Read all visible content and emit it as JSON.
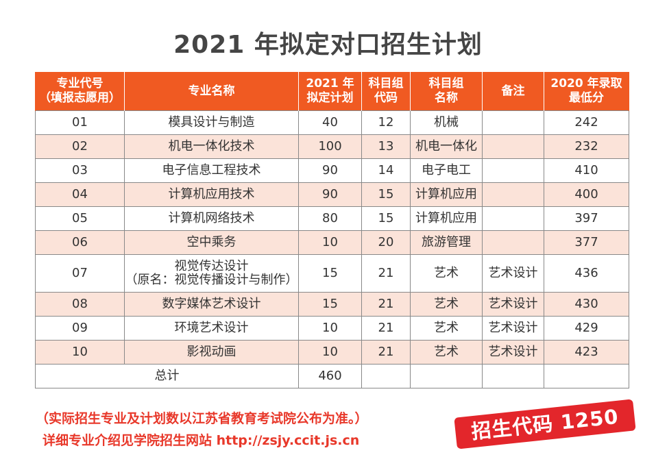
{
  "title": "2021 年拟定对口招生计划",
  "table": {
    "headers": [
      [
        "专业代号",
        "（填报志愿用）"
      ],
      [
        "专业名称"
      ],
      [
        "2021 年",
        "拟定计划"
      ],
      [
        "科目组",
        "代码"
      ],
      [
        "科目组",
        "名称"
      ],
      [
        "备注"
      ],
      [
        "2020 年录取",
        "最低分"
      ]
    ],
    "rows": [
      {
        "code": "01",
        "name": "模具设计与制造",
        "name2": "",
        "plan": "40",
        "group_code": "12",
        "group_name": "机械",
        "note": "",
        "min_score": "242"
      },
      {
        "code": "02",
        "name": "机电一体化技术",
        "name2": "",
        "plan": "100",
        "group_code": "13",
        "group_name": "机电一体化",
        "note": "",
        "min_score": "232"
      },
      {
        "code": "03",
        "name": "电子信息工程技术",
        "name2": "",
        "plan": "90",
        "group_code": "14",
        "group_name": "电子电工",
        "note": "",
        "min_score": "410"
      },
      {
        "code": "04",
        "name": "计算机应用技术",
        "name2": "",
        "plan": "90",
        "group_code": "15",
        "group_name": "计算机应用",
        "note": "",
        "min_score": "400"
      },
      {
        "code": "05",
        "name": "计算机网络技术",
        "name2": "",
        "plan": "80",
        "group_code": "15",
        "group_name": "计算机应用",
        "note": "",
        "min_score": "397"
      },
      {
        "code": "06",
        "name": "空中乘务",
        "name2": "",
        "plan": "10",
        "group_code": "20",
        "group_name": "旅游管理",
        "note": "",
        "min_score": "377"
      },
      {
        "code": "07",
        "name": "视觉传达设计",
        "name2": "（原名：视觉传播设计与制作）",
        "plan": "15",
        "group_code": "21",
        "group_name": "艺术",
        "note": "艺术设计",
        "min_score": "436"
      },
      {
        "code": "08",
        "name": "数字媒体艺术设计",
        "name2": "",
        "plan": "15",
        "group_code": "21",
        "group_name": "艺术",
        "note": "艺术设计",
        "min_score": "430"
      },
      {
        "code": "09",
        "name": "环境艺术设计",
        "name2": "",
        "plan": "10",
        "group_code": "21",
        "group_name": "艺术",
        "note": "艺术设计",
        "min_score": "429"
      },
      {
        "code": "10",
        "name": "影视动画",
        "name2": "",
        "plan": "10",
        "group_code": "21",
        "group_name": "艺术",
        "note": "艺术设计",
        "min_score": "423"
      }
    ],
    "total_label": "总计",
    "total_plan": "460"
  },
  "notes": {
    "line1": "（实际招生专业及计划数以江苏省教育考试院公布为准。）",
    "line2": "详细专业介绍见学院招生网站 http://zsjy.ccit.js.cn"
  },
  "badge": "招生代码 1250",
  "colors": {
    "header_bg": "#f05a22",
    "stripe_bg": "#fbe3d9",
    "note_text": "#e8382a",
    "badge_bg": "#e3262b"
  }
}
